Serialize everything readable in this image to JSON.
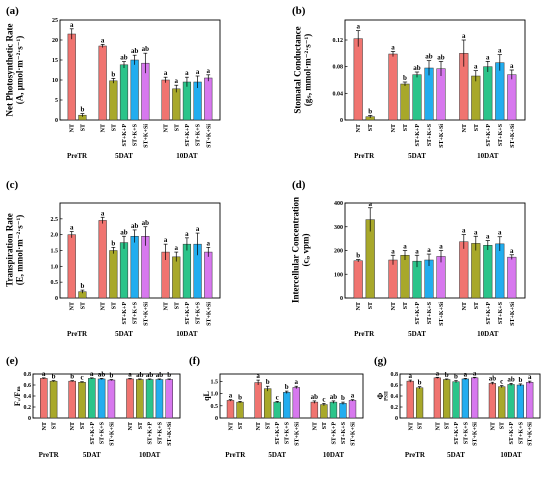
{
  "colors": {
    "NT": "#F07470",
    "ST": "#A8A82A",
    "ST+K+P": "#2BC48A",
    "ST+K+S": "#22ADEF",
    "ST+K+Si": "#D778EE"
  },
  "chart_data": [
    {
      "type": "bar",
      "panel_label": "(a)",
      "ylabel_lines": [
        "Net Photosynthetic Rate",
        "(A, μmol·m⁻²·s⁻¹)"
      ],
      "ylim": [
        0,
        25
      ],
      "yticks": [
        "0",
        "5",
        "10",
        "15",
        "20",
        "25"
      ],
      "groups": [
        {
          "name": "PreTR",
          "bars": [
            {
              "label": "NT",
              "value": 21.5,
              "err": 1.3,
              "sig": "a"
            },
            {
              "label": "ST",
              "value": 1.2,
              "err": 0.4,
              "sig": "b"
            }
          ]
        },
        {
          "name": "5DAT",
          "bars": [
            {
              "label": "NT",
              "value": 18.5,
              "err": 0.4,
              "sig": "a"
            },
            {
              "label": "ST",
              "value": 9.8,
              "err": 0.6,
              "sig": "b"
            },
            {
              "label": "ST+K+P",
              "value": 13.8,
              "err": 0.8,
              "sig": "ab"
            },
            {
              "label": "ST+K+S",
              "value": 15.0,
              "err": 1.2,
              "sig": "ab"
            },
            {
              "label": "ST+K+Si",
              "value": 14.2,
              "err": 2.5,
              "sig": "ab"
            }
          ]
        },
        {
          "name": "10DAT",
          "bars": [
            {
              "label": "NT",
              "value": 10.0,
              "err": 0.7,
              "sig": "a"
            },
            {
              "label": "ST",
              "value": 7.8,
              "err": 0.9,
              "sig": "a"
            },
            {
              "label": "ST+K+P",
              "value": 9.5,
              "err": 1.2,
              "sig": "a"
            },
            {
              "label": "ST+K+S",
              "value": 9.5,
              "err": 1.5,
              "sig": "a"
            },
            {
              "label": "ST+K+Si",
              "value": 10.5,
              "err": 0.8,
              "sig": "a"
            }
          ]
        }
      ]
    },
    {
      "type": "bar",
      "panel_label": "(b)",
      "ylabel_lines": [
        "Stomatal Conductance",
        "(gₛ, mmol·m⁻²·s⁻¹)"
      ],
      "ylim": [
        0,
        0.15
      ],
      "yticks": [
        "0",
        "0.04",
        "0.08",
        "0.12"
      ],
      "groups": [
        {
          "name": "PreTR",
          "bars": [
            {
              "label": "NT",
              "value": 0.122,
              "err": 0.012,
              "sig": "a"
            },
            {
              "label": "ST",
              "value": 0.005,
              "err": 0.002,
              "sig": "b"
            }
          ]
        },
        {
          "name": "5DAT",
          "bars": [
            {
              "label": "NT",
              "value": 0.099,
              "err": 0.004,
              "sig": "a"
            },
            {
              "label": "ST",
              "value": 0.054,
              "err": 0.003,
              "sig": "b"
            },
            {
              "label": "ST+K+P",
              "value": 0.068,
              "err": 0.004,
              "sig": "ab"
            },
            {
              "label": "ST+K+S",
              "value": 0.078,
              "err": 0.011,
              "sig": "ab"
            },
            {
              "label": "ST+K+Si",
              "value": 0.077,
              "err": 0.011,
              "sig": "ab"
            }
          ]
        },
        {
          "name": "10DAT",
          "bars": [
            {
              "label": "NT",
              "value": 0.1,
              "err": 0.02,
              "sig": "a"
            },
            {
              "label": "ST",
              "value": 0.066,
              "err": 0.008,
              "sig": "a"
            },
            {
              "label": "ST+K+P",
              "value": 0.08,
              "err": 0.008,
              "sig": "a"
            },
            {
              "label": "ST+K+S",
              "value": 0.086,
              "err": 0.012,
              "sig": "a"
            },
            {
              "label": "ST+K+Si",
              "value": 0.068,
              "err": 0.007,
              "sig": "a"
            }
          ]
        }
      ]
    },
    {
      "type": "bar",
      "panel_label": "(c)",
      "ylabel_lines": [
        "Transpiration Rate",
        "(E, mmol·m⁻²·s⁻¹)"
      ],
      "ylim": [
        0,
        3
      ],
      "yticks": [
        "0",
        "0.5",
        "1.0",
        "1.5",
        "2.0",
        "2.5"
      ],
      "groups": [
        {
          "name": "PreTR",
          "bars": [
            {
              "label": "NT",
              "value": 2.0,
              "err": 0.1,
              "sig": "a"
            },
            {
              "label": "ST",
              "value": 0.2,
              "err": 0.05,
              "sig": "b"
            }
          ]
        },
        {
          "name": "5DAT",
          "bars": [
            {
              "label": "NT",
              "value": 2.45,
              "err": 0.1,
              "sig": "a"
            },
            {
              "label": "ST",
              "value": 1.5,
              "err": 0.1,
              "sig": "b"
            },
            {
              "label": "ST+K+P",
              "value": 1.75,
              "err": 0.2,
              "sig": "ab"
            },
            {
              "label": "ST+K+S",
              "value": 1.95,
              "err": 0.2,
              "sig": "ab"
            },
            {
              "label": "ST+K+Si",
              "value": 1.95,
              "err": 0.3,
              "sig": "ab"
            }
          ]
        },
        {
          "name": "10DAT",
          "bars": [
            {
              "label": "NT",
              "value": 1.45,
              "err": 0.25,
              "sig": "a"
            },
            {
              "label": "ST",
              "value": 1.3,
              "err": 0.15,
              "sig": "a"
            },
            {
              "label": "ST+K+P",
              "value": 1.7,
              "err": 0.2,
              "sig": "a"
            },
            {
              "label": "ST+K+S",
              "value": 1.7,
              "err": 0.35,
              "sig": "a"
            },
            {
              "label": "ST+K+Si",
              "value": 1.45,
              "err": 0.15,
              "sig": "a"
            }
          ]
        }
      ]
    },
    {
      "type": "bar",
      "panel_label": "(d)",
      "ylabel_lines": [
        "Intercellular Concentration",
        "(cᵢ, vpm)"
      ],
      "ylim": [
        0,
        400
      ],
      "yticks": [
        "0",
        "100",
        "200",
        "300",
        "400"
      ],
      "groups": [
        {
          "name": "PreTR",
          "bars": [
            {
              "label": "NT",
              "value": 157,
              "err": 5,
              "sig": "b"
            },
            {
              "label": "ST",
              "value": 330,
              "err": 50,
              "sig": "a"
            }
          ]
        },
        {
          "name": "5DAT",
          "bars": [
            {
              "label": "NT",
              "value": 160,
              "err": 20,
              "sig": "a"
            },
            {
              "label": "ST",
              "value": 180,
              "err": 20,
              "sig": "a"
            },
            {
              "label": "ST+K+P",
              "value": 155,
              "err": 25,
              "sig": "a"
            },
            {
              "label": "ST+K+S",
              "value": 160,
              "err": 25,
              "sig": "a"
            },
            {
              "label": "ST+K+Si",
              "value": 175,
              "err": 25,
              "sig": "a"
            }
          ]
        },
        {
          "name": "10DAT",
          "bars": [
            {
              "label": "NT",
              "value": 237,
              "err": 30,
              "sig": "a"
            },
            {
              "label": "ST",
              "value": 230,
              "err": 30,
              "sig": "a"
            },
            {
              "label": "ST+K+P",
              "value": 222,
              "err": 20,
              "sig": "a"
            },
            {
              "label": "ST+K+S",
              "value": 228,
              "err": 30,
              "sig": "a"
            },
            {
              "label": "ST+K+Si",
              "value": 172,
              "err": 10,
              "sig": "a"
            }
          ]
        }
      ]
    },
    {
      "type": "bar",
      "panel_label": "(e)",
      "ylabel_lines": [
        "Fᵥ/Fₘ"
      ],
      "ylim": [
        0,
        0.8
      ],
      "yticks": [
        "0",
        "0.2",
        "0.4",
        "0.6",
        "0.8"
      ],
      "groups": [
        {
          "name": "PreTR",
          "bars": [
            {
              "label": "NT",
              "value": 0.72,
              "err": 0.01,
              "sig": "a"
            },
            {
              "label": "ST",
              "value": 0.67,
              "err": 0.01,
              "sig": "b"
            }
          ]
        },
        {
          "name": "5DAT",
          "bars": [
            {
              "label": "NT",
              "value": 0.67,
              "err": 0.01,
              "sig": "b"
            },
            {
              "label": "ST",
              "value": 0.65,
              "err": 0.01,
              "sig": "c"
            },
            {
              "label": "ST+K+P",
              "value": 0.72,
              "err": 0.01,
              "sig": "a"
            },
            {
              "label": "ST+K+S",
              "value": 0.71,
              "err": 0.01,
              "sig": "ab"
            },
            {
              "label": "ST+K+Si",
              "value": 0.69,
              "err": 0.01,
              "sig": "b"
            }
          ]
        },
        {
          "name": "10DAT",
          "bars": [
            {
              "label": "NT",
              "value": 0.71,
              "err": 0.01,
              "sig": "a"
            },
            {
              "label": "ST",
              "value": 0.7,
              "err": 0.01,
              "sig": "ab"
            },
            {
              "label": "ST+K+P",
              "value": 0.7,
              "err": 0.01,
              "sig": "ab"
            },
            {
              "label": "ST+K+S",
              "value": 0.7,
              "err": 0.01,
              "sig": "ab"
            },
            {
              "label": "ST+K+Si",
              "value": 0.7,
              "err": 0.01,
              "sig": "b"
            }
          ]
        }
      ]
    },
    {
      "type": "bar",
      "panel_label": "(f)",
      "ylabel_lines": [
        "qL"
      ],
      "ylim": [
        0,
        1.8
      ],
      "yticks": [
        "0",
        "0.5",
        "1.0",
        "1.5"
      ],
      "groups": [
        {
          "name": "PreTR",
          "bars": [
            {
              "label": "NT",
              "value": 0.72,
              "err": 0.03,
              "sig": "a"
            },
            {
              "label": "ST",
              "value": 0.65,
              "err": 0.03,
              "sig": "b"
            }
          ]
        },
        {
          "name": "5DAT",
          "bars": [
            {
              "label": "NT",
              "value": 1.45,
              "err": 0.1,
              "sig": "a"
            },
            {
              "label": "ST",
              "value": 1.2,
              "err": 0.1,
              "sig": "b"
            },
            {
              "label": "ST+K+P",
              "value": 0.65,
              "err": 0.03,
              "sig": "c"
            },
            {
              "label": "ST+K+S",
              "value": 1.05,
              "err": 0.05,
              "sig": "b"
            },
            {
              "label": "ST+K+Si",
              "value": 1.25,
              "err": 0.05,
              "sig": "a"
            }
          ]
        },
        {
          "name": "10DAT",
          "bars": [
            {
              "label": "NT",
              "value": 0.65,
              "err": 0.05,
              "sig": "ab"
            },
            {
              "label": "ST",
              "value": 0.55,
              "err": 0.05,
              "sig": "c"
            },
            {
              "label": "ST+K+P",
              "value": 0.65,
              "err": 0.05,
              "sig": "ab"
            },
            {
              "label": "ST+K+S",
              "value": 0.6,
              "err": 0.05,
              "sig": "b"
            },
            {
              "label": "ST+K+Si",
              "value": 0.72,
              "err": 0.03,
              "sig": "a"
            }
          ]
        }
      ]
    },
    {
      "type": "bar",
      "panel_label": "(g)",
      "ylabel_lines": [
        "Φ",
        "PSII"
      ],
      "ylim": [
        0,
        0.8
      ],
      "yticks": [
        "0",
        "0.2",
        "0.4",
        "0.6",
        "0.8"
      ],
      "groups": [
        {
          "name": "PreTR",
          "bars": [
            {
              "label": "NT",
              "value": 0.67,
              "err": 0.02,
              "sig": "a"
            },
            {
              "label": "ST",
              "value": 0.55,
              "err": 0.02,
              "sig": "b"
            }
          ]
        },
        {
          "name": "5DAT",
          "bars": [
            {
              "label": "NT",
              "value": 0.73,
              "err": 0.01,
              "sig": "a"
            },
            {
              "label": "ST",
              "value": 0.7,
              "err": 0.01,
              "sig": "b"
            },
            {
              "label": "ST+K+P",
              "value": 0.66,
              "err": 0.02,
              "sig": "b"
            },
            {
              "label": "ST+K+S",
              "value": 0.71,
              "err": 0.01,
              "sig": "a"
            },
            {
              "label": "ST+K+Si",
              "value": 0.73,
              "err": 0.01,
              "sig": "a"
            }
          ]
        },
        {
          "name": "10DAT",
          "bars": [
            {
              "label": "NT",
              "value": 0.63,
              "err": 0.02,
              "sig": "ab"
            },
            {
              "label": "ST",
              "value": 0.57,
              "err": 0.02,
              "sig": "c"
            },
            {
              "label": "ST+K+P",
              "value": 0.61,
              "err": 0.02,
              "sig": "ab"
            },
            {
              "label": "ST+K+S",
              "value": 0.6,
              "err": 0.02,
              "sig": "b"
            },
            {
              "label": "ST+K+Si",
              "value": 0.65,
              "err": 0.02,
              "sig": "a"
            }
          ]
        }
      ]
    }
  ]
}
